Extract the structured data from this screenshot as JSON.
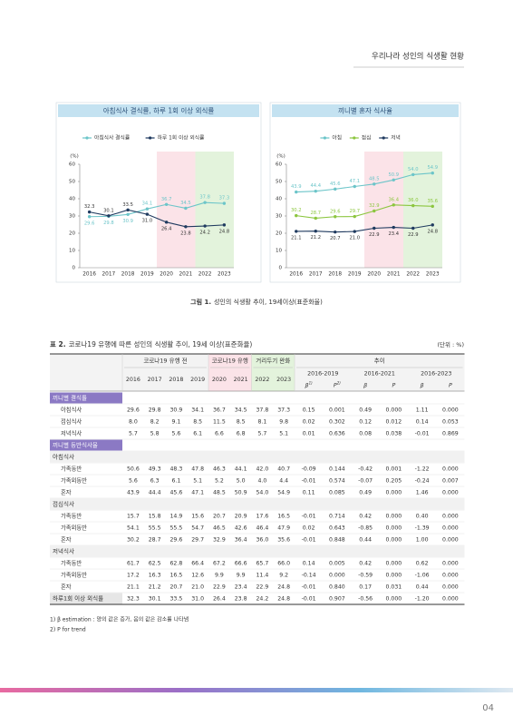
{
  "header": {
    "title": "우리나라 성인의 식생활 현황"
  },
  "chart_data": [
    {
      "type": "line",
      "title": "아침식사 결식률, 하루 1회 이상 외식률",
      "y_label": "(%)",
      "categories": [
        "2016",
        "2017",
        "2018",
        "2019",
        "2020",
        "2021",
        "2022",
        "2023"
      ],
      "ylim": [
        0,
        60
      ],
      "yticks": [
        0,
        10,
        20,
        30,
        40,
        50,
        60
      ],
      "series": [
        {
          "name": "아침식사 결식률",
          "color": "#6cc5c9",
          "values": [
            29.6,
            29.8,
            30.9,
            34.1,
            36.7,
            34.5,
            37.8,
            37.3
          ],
          "value_labels": [
            "29.6",
            "29.8",
            "30.9",
            "34.1",
            "36.7",
            "34.5",
            "37.8",
            "37.3"
          ]
        },
        {
          "name": "하루 1회 이상 외식률",
          "color": "#1f3a5f",
          "values": [
            32.3,
            30.1,
            33.5,
            31.0,
            26.4,
            23.8,
            24.2,
            24.8
          ],
          "value_labels": [
            "32.3",
            "30.1",
            "33.5",
            "31.0",
            "26.4",
            "23.8",
            "24.2",
            "24.8"
          ]
        }
      ]
    },
    {
      "type": "line",
      "title": "끼니별 혼자 식사율",
      "y_label": "(%)",
      "categories": [
        "2016",
        "2017",
        "2018",
        "2019",
        "2020",
        "2021",
        "2022",
        "2023"
      ],
      "ylim": [
        0,
        60
      ],
      "yticks": [
        0,
        10,
        20,
        30,
        40,
        50,
        60
      ],
      "series": [
        {
          "name": "아침",
          "color": "#6cc5c9",
          "values": [
            43.9,
            44.4,
            45.6,
            47.1,
            48.5,
            50.9,
            54.0,
            54.9
          ],
          "value_labels": [
            "43.9",
            "44.4",
            "45.6",
            "47.1",
            "48.5",
            "50.9",
            "54.0",
            "54.9"
          ]
        },
        {
          "name": "점심",
          "color": "#8cc63f",
          "values": [
            30.2,
            28.7,
            29.6,
            29.7,
            32.9,
            36.4,
            36.0,
            35.6
          ],
          "value_labels": [
            "30.2",
            "28.7",
            "29.6",
            "29.7",
            "32.9",
            "36.4",
            "36.0",
            "35.6"
          ]
        },
        {
          "name": "저녁",
          "color": "#1f3a5f",
          "values": [
            21.1,
            21.2,
            20.7,
            21.0,
            22.9,
            23.4,
            22.9,
            24.8
          ],
          "value_labels": [
            "21.1",
            "21.2",
            "20.7",
            "21.0",
            "22.9",
            "23.4",
            "22.9",
            "24.8"
          ]
        }
      ]
    }
  ],
  "figure_caption": {
    "label": "그림 1.",
    "text": "성인의 식생활 추이, 19세이상(표준화율)"
  },
  "table": {
    "title": {
      "label": "표 2.",
      "text": "코로나19 유행에 따른 성인의 식생활 추이, 19세 이상(표준화율)"
    },
    "unit": "(단위 : %)",
    "header": {
      "groups": [
        "코로나19 유행 전",
        "코로나19 유행",
        "거리두기 완화",
        "추이"
      ],
      "years": [
        "2016",
        "2017",
        "2018",
        "2019",
        "2020",
        "2021",
        "2022",
        "2023"
      ],
      "periods": [
        "2016-2019",
        "2016-2021",
        "2016-2023"
      ],
      "stats": [
        {
          "text": "β",
          "note": "1)"
        },
        {
          "text": "P",
          "note": "2)"
        },
        "β",
        "P",
        "β",
        "P"
      ]
    },
    "rows": [
      {
        "section": "끼니별 결식률"
      },
      {
        "label": "아침식사",
        "cells": [
          "29.6",
          "29.8",
          "30.9",
          "34.1",
          "36.7",
          "34.5",
          "37.8",
          "37.3",
          "0.15",
          "0.001",
          "0.49",
          "0.000",
          "1.11",
          "0.000"
        ]
      },
      {
        "label": "점심식사",
        "cells": [
          "8.0",
          "8.2",
          "9.1",
          "8.5",
          "11.5",
          "8.5",
          "8.1",
          "9.8",
          "0.02",
          "0.302",
          "0.12",
          "0.012",
          "0.14",
          "0.053"
        ]
      },
      {
        "label": "저녁식사",
        "cells": [
          "5.7",
          "5.8",
          "5.6",
          "6.1",
          "6.6",
          "6.8",
          "5.7",
          "5.1",
          "0.01",
          "0.636",
          "0.08",
          "0.038",
          "-0.01",
          "0.869"
        ]
      },
      {
        "section": "끼니별 동반식사율"
      },
      {
        "subsection": "아침식사"
      },
      {
        "label": "가족동반",
        "cells": [
          "50.6",
          "49.3",
          "48.3",
          "47.8",
          "46.3",
          "44.1",
          "42.0",
          "40.7",
          "-0.09",
          "0.144",
          "-0.42",
          "0.001",
          "-1.22",
          "0.000"
        ]
      },
      {
        "label": "가족외동반",
        "cells": [
          "5.6",
          "6.3",
          "6.1",
          "5.1",
          "5.2",
          "5.0",
          "4.0",
          "4.4",
          "-0.01",
          "0.574",
          "-0.07",
          "0.205",
          "-0.24",
          "0.007"
        ]
      },
      {
        "label": "혼자",
        "cells": [
          "43.9",
          "44.4",
          "45.6",
          "47.1",
          "48.5",
          "50.9",
          "54.0",
          "54.9",
          "0.11",
          "0.085",
          "0.49",
          "0.000",
          "1.46",
          "0.000"
        ]
      },
      {
        "subsection": "점심식사"
      },
      {
        "label": "가족동반",
        "cells": [
          "15.7",
          "15.8",
          "14.9",
          "15.6",
          "20.7",
          "20.9",
          "17.6",
          "16.5",
          "-0.01",
          "0.714",
          "0.42",
          "0.000",
          "0.40",
          "0.000"
        ]
      },
      {
        "label": "가족외동반",
        "cells": [
          "54.1",
          "55.5",
          "55.5",
          "54.7",
          "46.5",
          "42.6",
          "46.4",
          "47.9",
          "0.02",
          "0.643",
          "-0.85",
          "0.000",
          "-1.39",
          "0.000"
        ]
      },
      {
        "label": "혼자",
        "cells": [
          "30.2",
          "28.7",
          "29.6",
          "29.7",
          "32.9",
          "36.4",
          "36.0",
          "35.6",
          "-0.01",
          "0.848",
          "0.44",
          "0.000",
          "1.00",
          "0.000"
        ]
      },
      {
        "subsection": "저녁식사"
      },
      {
        "label": "가족동반",
        "cells": [
          "61.7",
          "62.5",
          "62.8",
          "66.4",
          "67.2",
          "66.6",
          "65.7",
          "66.0",
          "0.14",
          "0.005",
          "0.42",
          "0.000",
          "0.62",
          "0.000"
        ]
      },
      {
        "label": "가족외동반",
        "cells": [
          "17.2",
          "16.3",
          "16.5",
          "12.6",
          "9.9",
          "9.9",
          "11.4",
          "9.2",
          "-0.14",
          "0.000",
          "-0.59",
          "0.000",
          "-1.06",
          "0.000"
        ]
      },
      {
        "label": "혼자",
        "cells": [
          "21.1",
          "21.2",
          "20.7",
          "21.0",
          "22.9",
          "23.4",
          "22.9",
          "24.8",
          "-0.01",
          "0.840",
          "0.17",
          "0.031",
          "0.44",
          "0.000"
        ]
      },
      {
        "total": "하루1회 이상 외식률",
        "cells": [
          "32.3",
          "30.1",
          "33.5",
          "31.0",
          "26.4",
          "23.8",
          "24.2",
          "24.8",
          "-0.01",
          "0.907",
          "-0.56",
          "0.000",
          "-1.20",
          "0.000"
        ]
      }
    ],
    "footnotes": [
      "1) β estimation : 양의 값은 증가, 음의 값은 감소를 나타냄",
      "2) P for trend"
    ]
  },
  "page_number": "04"
}
